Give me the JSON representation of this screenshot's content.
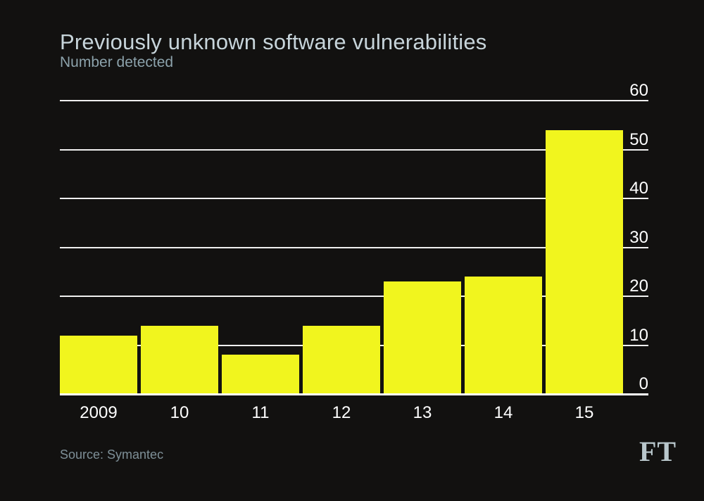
{
  "header": {
    "title": "Previously unknown software vulnerabilities",
    "subtitle": "Number detected"
  },
  "footer": {
    "source": "Source: Symantec",
    "logo": "FT"
  },
  "colors": {
    "background": "#121110",
    "bar": "#f1f51e",
    "gridline": "#f0f0f0",
    "baseline": "#ffffff",
    "axis_text": "#ffffff",
    "title": "#c7d4da",
    "subtitle": "#8ca2ab",
    "source": "#7e8f97",
    "logo": "#b9c7cc"
  },
  "chart_data": {
    "type": "bar",
    "title": "Previously unknown software vulnerabilities",
    "subtitle": "Number detected",
    "categories": [
      "2009",
      "10",
      "11",
      "12",
      "13",
      "14",
      "15"
    ],
    "values": [
      12,
      14,
      8,
      14,
      23,
      24,
      54
    ],
    "series_name": "Number detected",
    "xlabel": "",
    "ylabel": "Number detected",
    "ylim": [
      0,
      60
    ],
    "yticks": [
      0,
      10,
      20,
      30,
      40,
      50,
      60
    ],
    "ytick_side": "right",
    "grid": "horizontal",
    "legend": "none",
    "source": "Source: Symantec"
  }
}
